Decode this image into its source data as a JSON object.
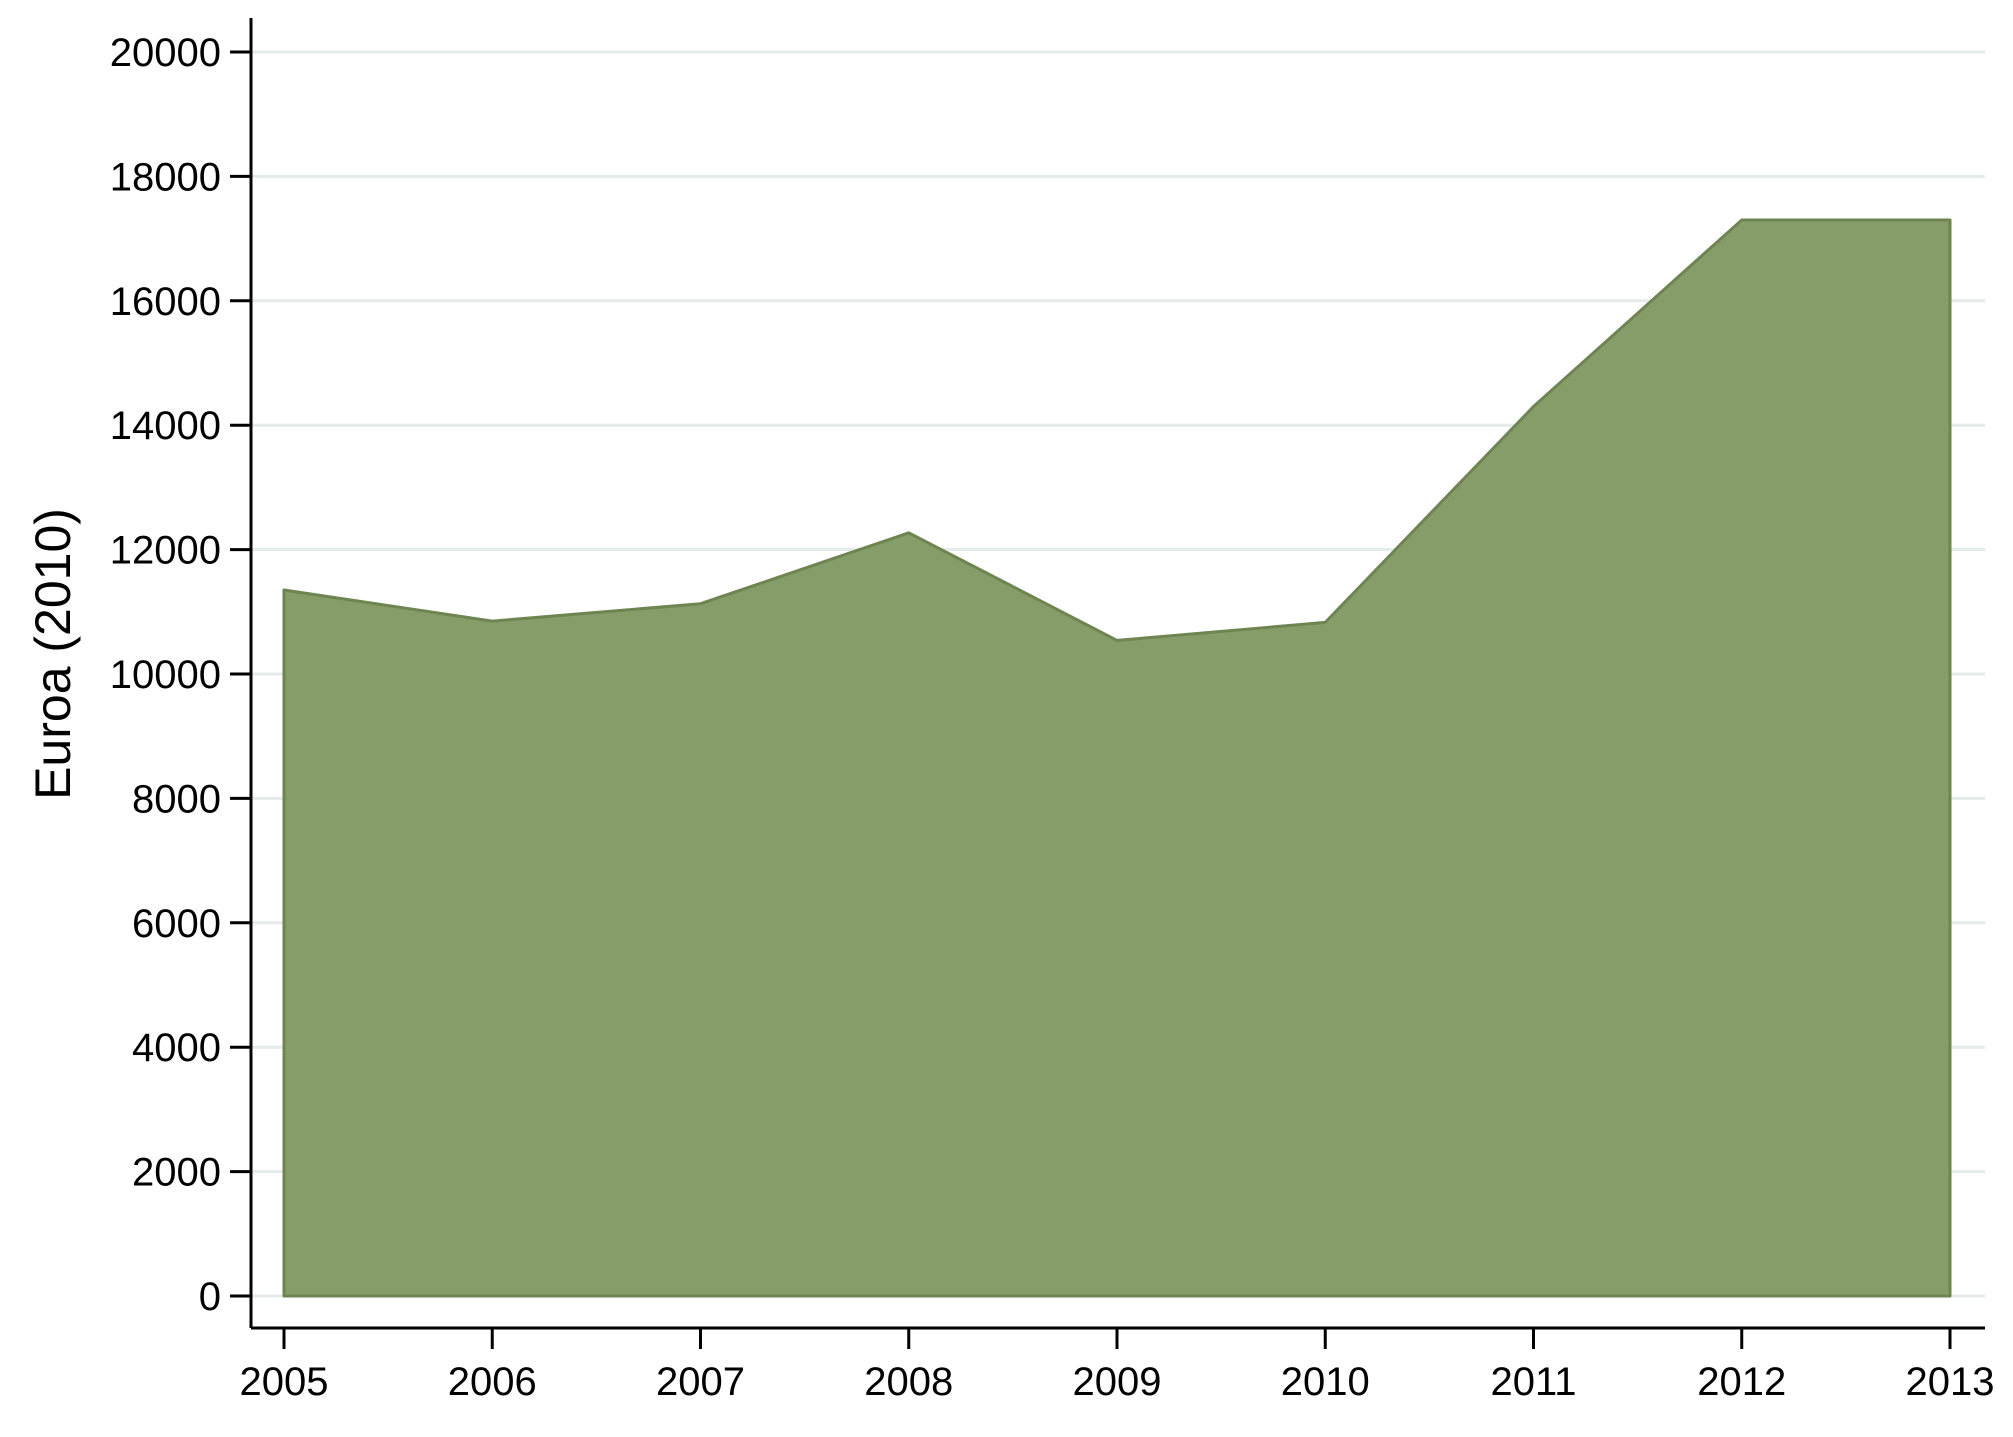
{
  "chart_data": {
    "type": "area",
    "title": "",
    "xlabel": "",
    "ylabel": "Euroa (2010)",
    "x": [
      2005,
      2006,
      2007,
      2008,
      2009,
      2010,
      2011,
      2012,
      2013
    ],
    "x_tick_labels": [
      "2005",
      "2006",
      "2007",
      "2008",
      "2009",
      "2010",
      "2011",
      "2012",
      "2013"
    ],
    "y_ticks": [
      0,
      2000,
      4000,
      6000,
      8000,
      10000,
      12000,
      14000,
      16000,
      18000,
      20000
    ],
    "y_tick_labels": [
      "0",
      "2000",
      "4000",
      "6000",
      "8000",
      "10000",
      "12000",
      "14000",
      "16000",
      "18000",
      "20000"
    ],
    "ylim": [
      0,
      20000
    ],
    "grid": true,
    "legend": "none",
    "series": [
      {
        "values": [
          11350,
          10850,
          11130,
          12270,
          10540,
          10830,
          14300,
          17300,
          17300
        ]
      }
    ],
    "colors": {
      "fill": "#869c69",
      "stroke": "#6e8552",
      "grid": "#e3ece9",
      "axis": "#000000"
    }
  }
}
